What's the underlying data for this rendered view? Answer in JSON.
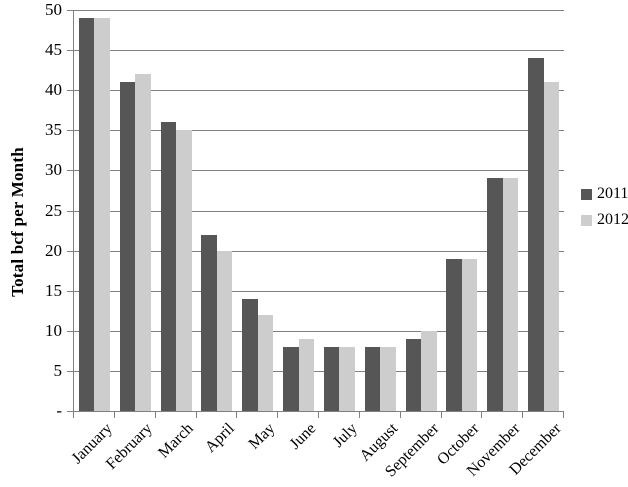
{
  "chart_data": {
    "type": "bar",
    "ylabel": "Total bcf per Month",
    "categories": [
      "January",
      "February",
      "March",
      "April",
      "May",
      "June",
      "July",
      "August",
      "September",
      "October",
      "November",
      "December"
    ],
    "series": [
      {
        "name": "2011",
        "color": "#565656",
        "values": [
          49,
          41,
          36,
          22,
          14,
          8,
          8,
          8,
          9,
          19,
          29,
          44
        ]
      },
      {
        "name": "2012",
        "color": "#cdcdcd",
        "values": [
          49,
          42,
          35,
          20,
          12,
          9,
          8,
          8,
          10,
          19,
          29,
          41
        ]
      }
    ],
    "ylim": [
      0,
      50
    ],
    "ytick_step": 5,
    "ytick_labels": [
      "-",
      "5",
      "10",
      "15",
      "20",
      "25",
      "30",
      "35",
      "40",
      "45",
      "50"
    ],
    "grid": true,
    "legend_position": "right",
    "axis_color": "#808080",
    "text_color": "#000000",
    "background": "#ffffff"
  }
}
